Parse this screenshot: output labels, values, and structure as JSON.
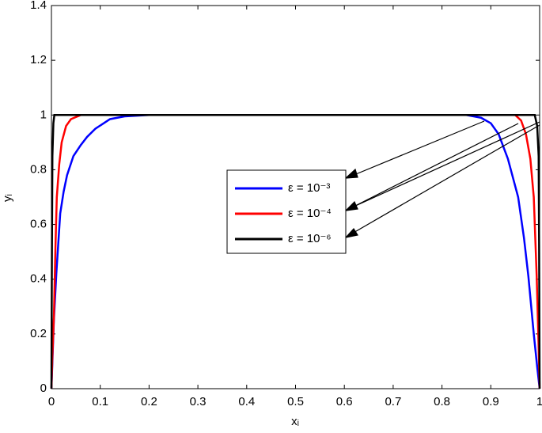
{
  "chart_data": {
    "type": "line",
    "xlabel": "xᵢ",
    "ylabel": "yᵢ",
    "xlim": [
      0,
      1
    ],
    "ylim": [
      0,
      1.4
    ],
    "xticks": [
      0,
      0.1,
      0.2,
      0.3,
      0.4,
      0.5,
      0.6,
      0.7,
      0.8,
      0.9,
      1
    ],
    "yticks": [
      0,
      0.2,
      0.4,
      0.6,
      0.8,
      1,
      1.2,
      1.4
    ],
    "series": [
      {
        "name": "ε = 10⁻³",
        "color": "#0000ff",
        "x": [
          0,
          0.005,
          0.01,
          0.018,
          0.025,
          0.032,
          0.045,
          0.06,
          0.073,
          0.09,
          0.12,
          0.15,
          0.2,
          0.5,
          0.85,
          0.88,
          0.9,
          0.916,
          0.935,
          0.956,
          0.968,
          0.977,
          0.988,
          0.995,
          1
        ],
        "values": [
          0,
          0.25,
          0.42,
          0.64,
          0.72,
          0.78,
          0.85,
          0.89,
          0.92,
          0.95,
          0.985,
          0.995,
          1,
          1,
          1,
          0.99,
          0.97,
          0.93,
          0.84,
          0.7,
          0.55,
          0.41,
          0.2,
          0.08,
          0
        ]
      },
      {
        "name": "ε = 10⁻⁴",
        "color": "#ff0000",
        "x": [
          0,
          0.002,
          0.005,
          0.008,
          0.011,
          0.016,
          0.021,
          0.03,
          0.04,
          0.06,
          0.5,
          0.95,
          0.962,
          0.972,
          0.981,
          0.988,
          0.994,
          0.998,
          1
        ],
        "values": [
          0,
          0.12,
          0.26,
          0.5,
          0.7,
          0.82,
          0.9,
          0.96,
          0.985,
          1,
          1,
          1,
          0.98,
          0.93,
          0.84,
          0.7,
          0.41,
          0.15,
          0
        ],
        "axis": "y"
      },
      {
        "name": "ε = 10⁻⁶",
        "color": "#000000",
        "x": [
          0,
          0.001,
          0.002,
          0.004,
          0.006,
          0.5,
          0.99,
          0.995,
          0.998,
          0.999,
          1
        ],
        "values": [
          0,
          0.5,
          0.85,
          0.97,
          1,
          1,
          1,
          0.96,
          0.85,
          0.5,
          0
        ]
      }
    ]
  }
}
